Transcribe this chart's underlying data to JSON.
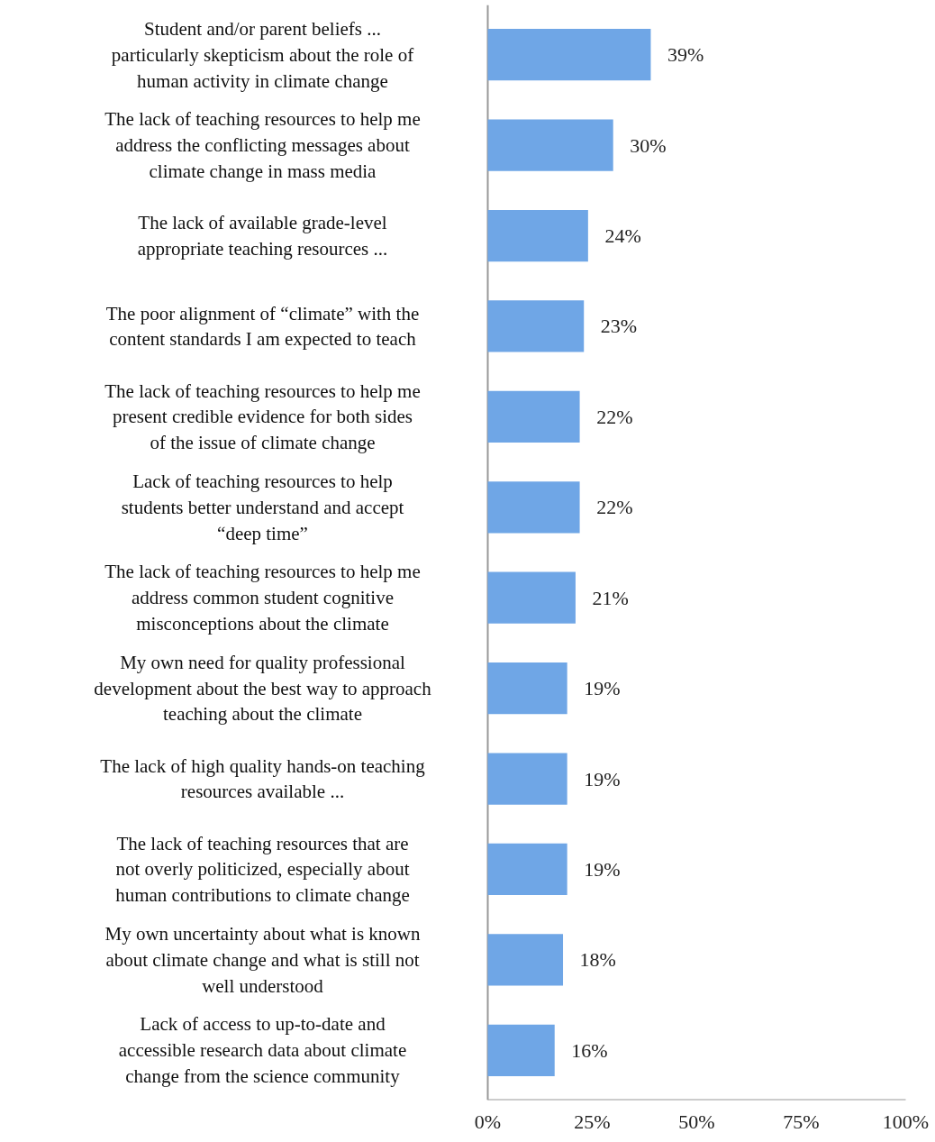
{
  "chart_data": {
    "type": "bar",
    "orientation": "horizontal",
    "categories": [
      "Student and/or parent beliefs ... particularly skepticism about the role of human activity in climate change",
      "The lack of teaching resources to help me address the conflicting messages about climate change in mass media",
      "The lack of available grade-level appropriate teaching resources ...",
      "The poor alignment of “climate” with the content standards I am expected to teach",
      "The lack of teaching resources to help me present credible evidence for both sides of the issue of climate change",
      "Lack of teaching resources to help students better understand and accept “deep time”",
      "The lack of teaching resources to help me address common student cognitive misconceptions about the climate",
      "My own need for quality professional development about the best way to approach teaching about the climate",
      "The lack of high quality hands-on teaching resources available ...",
      "The lack of teaching resources that are not overly politicized, especially about human contributions to climate change",
      "My own uncertainty about what is known about climate change and what is still not well understood",
      "Lack of access to up-to-date and accessible research data about climate change from the science community"
    ],
    "values": [
      39,
      30,
      24,
      23,
      22,
      22,
      21,
      19,
      19,
      19,
      18,
      16
    ],
    "value_labels": [
      "39%",
      "30%",
      "24%",
      "23%",
      "22%",
      "22%",
      "21%",
      "19%",
      "19%",
      "19%",
      "18%",
      "16%"
    ],
    "color": "#6fa6e6",
    "xlim": [
      0,
      100
    ],
    "xticks": [
      {
        "value": 0,
        "label": "0%"
      },
      {
        "value": 25,
        "label": "25%"
      },
      {
        "value": 50,
        "label": "50%"
      },
      {
        "value": 75,
        "label": "75%"
      },
      {
        "value": 100,
        "label": "100%"
      }
    ],
    "grid": false
  }
}
